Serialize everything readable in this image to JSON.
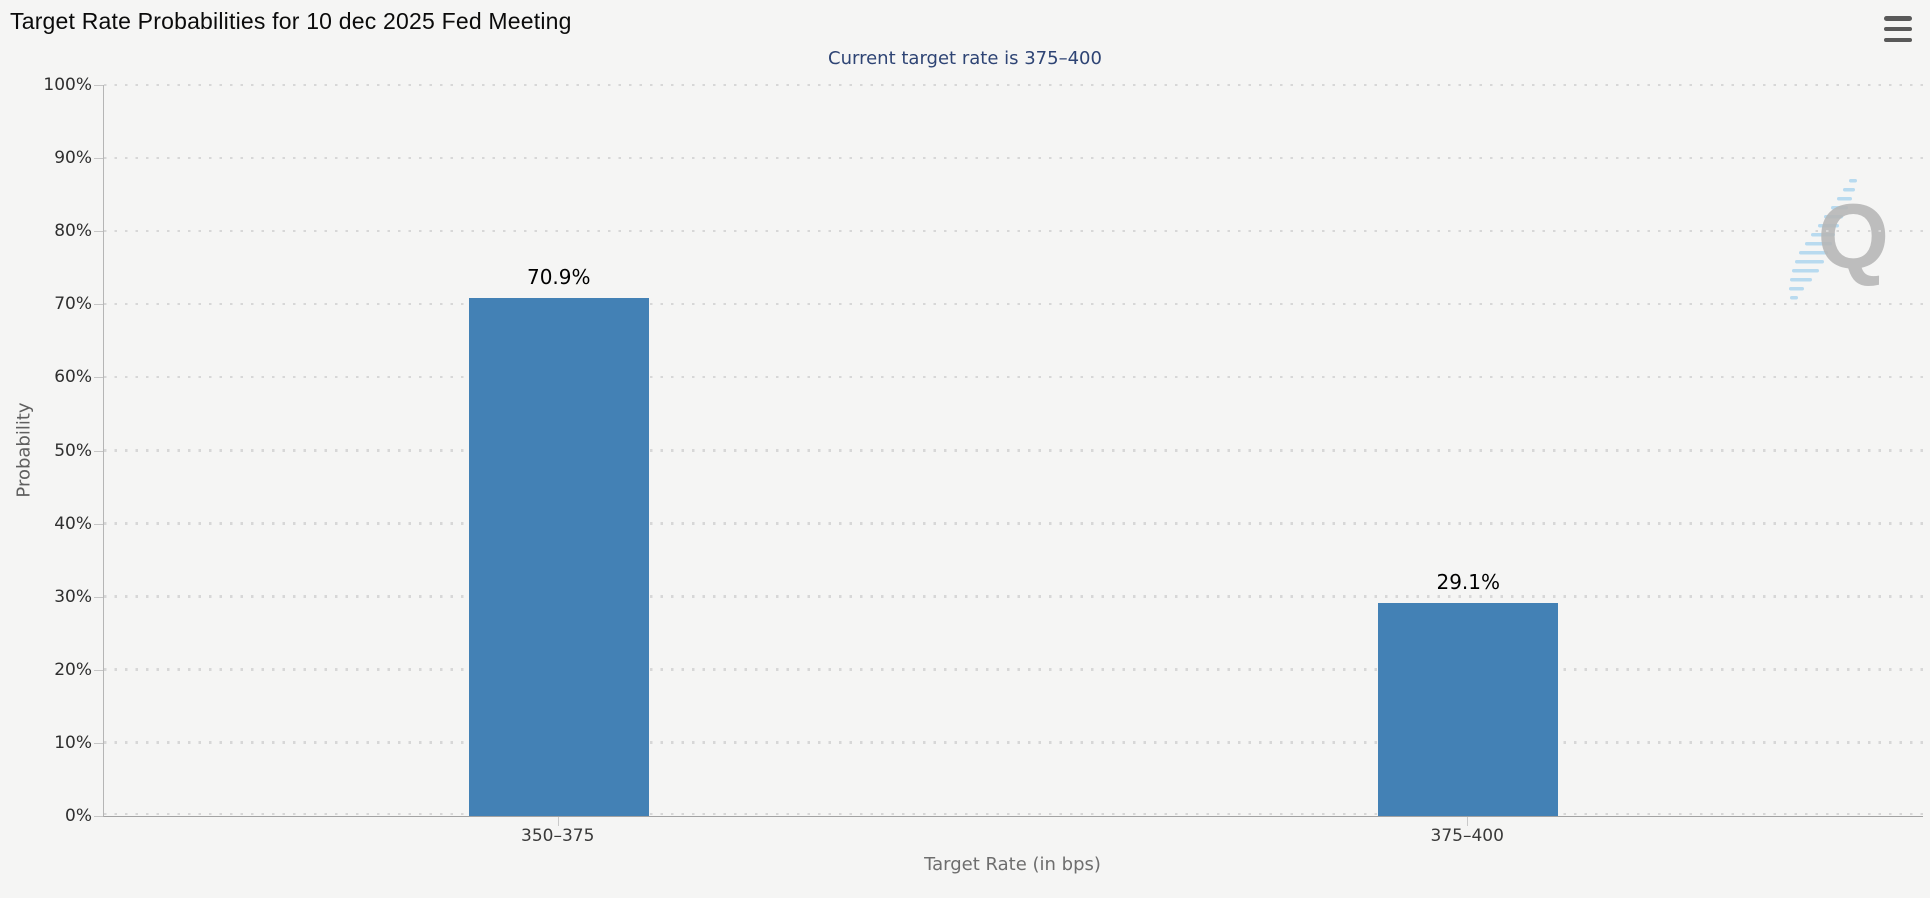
{
  "chart_data": {
    "type": "bar",
    "title": "Target Rate Probabilities for 10 dec 2025 Fed Meeting",
    "subtitle": "Current target rate is 375–400",
    "categories": [
      "350–375",
      "375–400"
    ],
    "values": [
      70.9,
      29.1
    ],
    "value_labels": [
      "70.9%",
      "29.1%"
    ],
    "xlabel": "Target Rate (in bps)",
    "ylabel": "Probability",
    "ylim": [
      0,
      100
    ],
    "ytick_step": 10,
    "yticks": [
      "0%",
      "10%",
      "20%",
      "30%",
      "40%",
      "50%",
      "60%",
      "70%",
      "80%",
      "90%",
      "100%"
    ],
    "grid": "horizontal-dotted",
    "legend_position": "none",
    "bar_color": "#4381b5"
  },
  "watermark": {
    "letter": "Q"
  },
  "colors": {
    "background": "#f5f5f4",
    "bar": "#4381b5",
    "subtitle_text": "#2e4474",
    "gridline": "#d7d7d7",
    "axis_line": "#a3a3a3",
    "tick_label": "#2f2f2f",
    "axis_title": "#6e6e6e",
    "watermark_gray": "#b6b6b6",
    "watermark_blue": "#aed6ef"
  }
}
